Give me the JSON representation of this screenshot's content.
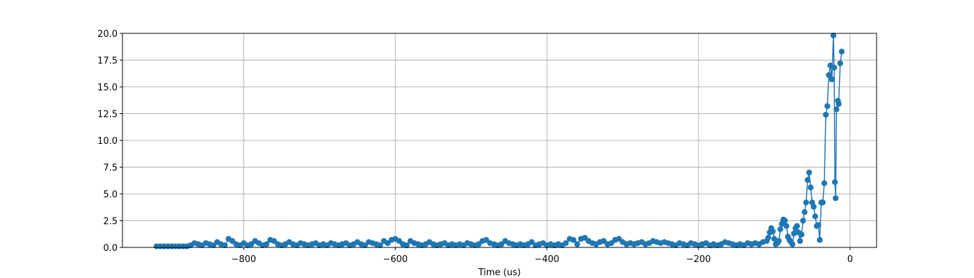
{
  "chart_data": {
    "type": "line",
    "xlabel": "Time (us)",
    "color": "#1f77b4",
    "grid": true,
    "marker": "circle",
    "xlim": [
      -960,
      35
    ],
    "ylim": [
      0,
      20
    ],
    "xticks": [
      {
        "value": -800,
        "label": "−800"
      },
      {
        "value": -600,
        "label": "−600"
      },
      {
        "value": -400,
        "label": "−400"
      },
      {
        "value": -200,
        "label": "−200"
      },
      0
    ],
    "yticks": [
      {
        "value": 0,
        "label": "0.0"
      },
      {
        "value": 2.5,
        "label": "2.5"
      },
      {
        "value": 5,
        "label": "5.0"
      },
      {
        "value": 7.5,
        "label": "7.5"
      },
      {
        "value": 10,
        "label": "10.0"
      },
      {
        "value": 12.5,
        "label": "12.5"
      },
      {
        "value": 15,
        "label": "15.0"
      },
      {
        "value": 17.5,
        "label": "17.5"
      },
      {
        "value": 20,
        "label": "20.0"
      }
    ],
    "x": [
      -915,
      -910,
      -905,
      -900,
      -895,
      -890,
      -885,
      -880,
      -875,
      -870,
      -865,
      -860,
      -855,
      -850,
      -845,
      -840,
      -835,
      -830,
      -825,
      -820,
      -815,
      -810,
      -805,
      -800,
      -795,
      -790,
      -785,
      -780,
      -775,
      -770,
      -765,
      -760,
      -755,
      -750,
      -745,
      -740,
      -735,
      -730,
      -725,
      -720,
      -715,
      -710,
      -705,
      -700,
      -695,
      -690,
      -685,
      -680,
      -675,
      -670,
      -665,
      -660,
      -655,
      -650,
      -645,
      -640,
      -635,
      -630,
      -625,
      -620,
      -615,
      -610,
      -605,
      -600,
      -595,
      -590,
      -585,
      -580,
      -575,
      -570,
      -565,
      -560,
      -555,
      -550,
      -545,
      -540,
      -535,
      -530,
      -525,
      -520,
      -515,
      -510,
      -505,
      -500,
      -495,
      -490,
      -485,
      -480,
      -475,
      -470,
      -465,
      -460,
      -455,
      -450,
      -445,
      -440,
      -435,
      -430,
      -425,
      -420,
      -415,
      -410,
      -405,
      -400,
      -395,
      -390,
      -385,
      -380,
      -375,
      -370,
      -365,
      -360,
      -355,
      -350,
      -345,
      -340,
      -335,
      -330,
      -325,
      -320,
      -315,
      -310,
      -305,
      -300,
      -295,
      -290,
      -285,
      -280,
      -275,
      -270,
      -265,
      -260,
      -255,
      -250,
      -245,
      -240,
      -235,
      -230,
      -225,
      -220,
      -215,
      -210,
      -205,
      -200,
      -195,
      -190,
      -185,
      -180,
      -175,
      -170,
      -165,
      -160,
      -155,
      -150,
      -145,
      -140,
      -135,
      -130,
      -125,
      -120,
      -115,
      -110,
      -108,
      -106,
      -104,
      -102,
      -100,
      -98,
      -96,
      -94,
      -92,
      -90,
      -88,
      -86,
      -84,
      -82,
      -80,
      -78,
      -76,
      -74,
      -72,
      -70,
      -68,
      -66,
      -64,
      -62,
      -60,
      -58,
      -56,
      -54,
      -52,
      -50,
      -48,
      -46,
      -44,
      -42,
      -40,
      -38,
      -36,
      -34,
      -32,
      -30,
      -28,
      -26,
      -24,
      -22,
      -21,
      -20,
      -19,
      -18,
      -16,
      -15,
      -13,
      -11
    ],
    "values": [
      0.1,
      0.1,
      0.1,
      0.1,
      0.1,
      0.1,
      0.1,
      0.1,
      0.1,
      0.2,
      0.4,
      0.3,
      0.2,
      0.4,
      0.3,
      0.2,
      0.5,
      0.3,
      0.2,
      0.8,
      0.6,
      0.3,
      0.2,
      0.4,
      0.2,
      0.3,
      0.6,
      0.4,
      0.2,
      0.3,
      0.7,
      0.6,
      0.3,
      0.2,
      0.3,
      0.5,
      0.3,
      0.2,
      0.4,
      0.3,
      0.2,
      0.3,
      0.4,
      0.2,
      0.3,
      0.2,
      0.4,
      0.3,
      0.2,
      0.3,
      0.4,
      0.2,
      0.3,
      0.5,
      0.3,
      0.2,
      0.5,
      0.4,
      0.3,
      0.2,
      0.6,
      0.4,
      0.7,
      0.8,
      0.6,
      0.3,
      0.2,
      0.6,
      0.4,
      0.3,
      0.2,
      0.3,
      0.5,
      0.3,
      0.2,
      0.3,
      0.4,
      0.2,
      0.3,
      0.2,
      0.3,
      0.2,
      0.4,
      0.3,
      0.2,
      0.3,
      0.6,
      0.7,
      0.4,
      0.3,
      0.2,
      0.3,
      0.6,
      0.4,
      0.3,
      0.2,
      0.3,
      0.2,
      0.3,
      0.5,
      0.2,
      0.3,
      0.4,
      0.2,
      0.3,
      0.2,
      0.3,
      0.2,
      0.4,
      0.8,
      0.7,
      0.3,
      0.8,
      0.9,
      0.6,
      0.4,
      0.3,
      0.5,
      0.6,
      0.3,
      0.4,
      0.7,
      0.8,
      0.5,
      0.3,
      0.4,
      0.3,
      0.4,
      0.5,
      0.3,
      0.4,
      0.6,
      0.5,
      0.4,
      0.5,
      0.4,
      0.3,
      0.2,
      0.4,
      0.3,
      0.2,
      0.4,
      0.3,
      0.2,
      0.3,
      0.4,
      0.2,
      0.3,
      0.2,
      0.3,
      0.5,
      0.4,
      0.3,
      0.2,
      0.3,
      0.2,
      0.4,
      0.3,
      0.4,
      0.3,
      0.5,
      0.6,
      0.9,
      1.4,
      1.8,
      1.5,
      0.8,
      0.3,
      0.4,
      0.6,
      1.7,
      2.2,
      2.6,
      2.5,
      2.0,
      1.0,
      0.7,
      0.5,
      0.3,
      1.3,
      1.8,
      2.0,
      1.4,
      0.6,
      1.2,
      2.5,
      3.3,
      4.2,
      6.3,
      7.0,
      5.6,
      4.2,
      3.8,
      2.9,
      2.0,
      2.1,
      0.7,
      4.2,
      4.2,
      6.0,
      12.4,
      13.2,
      16.1,
      17.0,
      15.7,
      19.8,
      16.8,
      6.1,
      4.6,
      12.9,
      13.7,
      13.4,
      17.2,
      18.3
    ]
  }
}
